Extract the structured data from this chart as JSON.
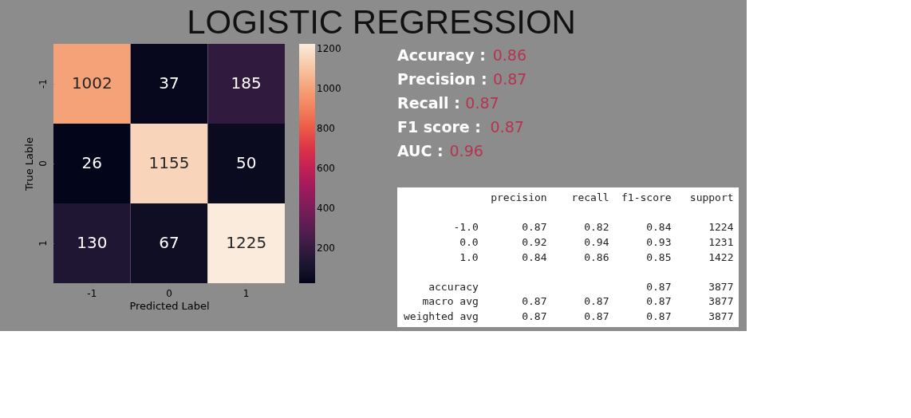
{
  "chart_data": [
    {
      "type": "heatmap",
      "title": "LOGISTIC REGRESSION",
      "xlabel": "Predicted Label",
      "ylabel": "True Lable",
      "categories": [
        "-1",
        "0",
        "1"
      ],
      "y_categories": [
        "-1",
        "0",
        "1"
      ],
      "cells": [
        [
          1002,
          37,
          185
        ],
        [
          26,
          1155,
          50
        ],
        [
          130,
          67,
          1225
        ]
      ],
      "data_labels": true,
      "clim": [
        26,
        1225
      ],
      "cticks": [
        200,
        400,
        600,
        800,
        1000,
        1200
      ]
    },
    {
      "type": "other",
      "annotations": [
        "Accuracy : 0.86",
        "Precision : 0.87",
        "Recall : 0.87",
        "F1 score : 0.87",
        "AUC : 0.96"
      ]
    },
    {
      "type": "other",
      "annotations": [
        "              precision    recall  f1-score   support",
        "        -1.0       0.87      0.82      0.84      1224",
        "         0.0       0.92      0.94      0.93      1231",
        "         1.0       0.84      0.86      0.85      1422",
        "    accuracy                           0.87      3877",
        "   macro avg       0.87      0.87      0.87      3877",
        "weighted avg       0.87      0.87      0.87      3877"
      ]
    }
  ]
}
